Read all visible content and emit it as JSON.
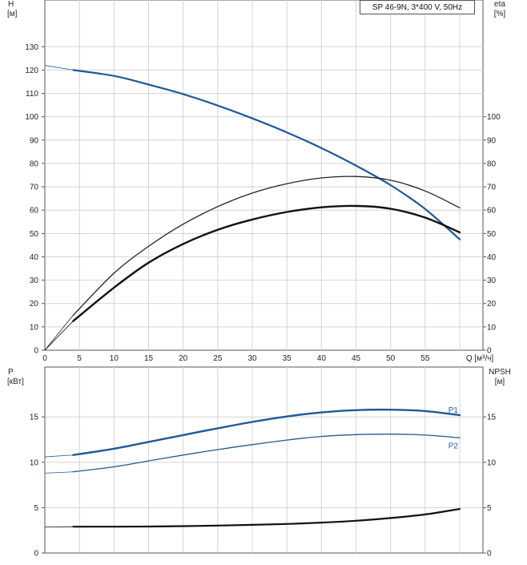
{
  "chart_data": [
    {
      "type": "line",
      "title": "SP 46-9N, 3*400 V, 50Hz",
      "xlabel": "Q [м³/ч]",
      "x_ticks": [
        0,
        5,
        10,
        15,
        20,
        25,
        30,
        35,
        40,
        45,
        50,
        55
      ],
      "xlim": [
        0,
        60
      ],
      "y_left_label": [
        "H",
        "[м]"
      ],
      "y_left_ticks": [
        0,
        10,
        20,
        30,
        40,
        50,
        60,
        70,
        80,
        90,
        100,
        110,
        120,
        130
      ],
      "y_left_lim": [
        0,
        150
      ],
      "y_right_label": [
        "eta",
        "[%]"
      ],
      "y_right_ticks": [
        0,
        10,
        20,
        30,
        40,
        50,
        60,
        70,
        80,
        90,
        100
      ],
      "y_right_lim": [
        0,
        150
      ],
      "grid": true,
      "series": [
        {
          "role": "head",
          "color": "#1f5a96",
          "width": 2.2,
          "axis": "left",
          "thin_prefix": [
            [
              0,
              122
            ],
            [
              4.1,
              120
            ]
          ],
          "x": [
            4.1,
            10,
            15,
            20,
            25,
            30,
            35,
            40,
            45,
            50,
            55,
            60
          ],
          "y": [
            120,
            117.5,
            113.8,
            109.7,
            104.8,
            99.3,
            93.3,
            86.6,
            79.1,
            70.7,
            60.5,
            47.5
          ]
        },
        {
          "role": "efficiency_total",
          "color": "#222222",
          "width": 1.3,
          "axis": "right",
          "thin_prefix": [
            [
              0,
              0
            ],
            [
              4.1,
              15
            ]
          ],
          "x": [
            4.1,
            10,
            15,
            20,
            25,
            30,
            35,
            40,
            45,
            50,
            55,
            60
          ],
          "y": [
            15,
            33,
            44.5,
            54,
            61.5,
            67.3,
            71.3,
            73.8,
            74.4,
            72.8,
            68.2,
            61
          ]
        },
        {
          "role": "efficiency_hydraulic",
          "color": "#111111",
          "width": 2.4,
          "axis": "right",
          "thin_prefix": [
            [
              0,
              0
            ],
            [
              4.1,
              12.5
            ]
          ],
          "x": [
            4.1,
            10,
            15,
            20,
            25,
            30,
            35,
            40,
            45,
            50,
            55,
            60
          ],
          "y": [
            12.5,
            26.8,
            37.5,
            45.5,
            51.6,
            56,
            59.2,
            61.2,
            61.8,
            60.6,
            56.8,
            50.5
          ]
        }
      ]
    },
    {
      "type": "line",
      "xlim": [
        0,
        60
      ],
      "y_left_label": [
        "P",
        "[кВт]"
      ],
      "y_left_ticks": [
        0,
        5,
        10,
        15
      ],
      "y_left_lim": [
        0,
        20.5
      ],
      "y_right_label": [
        "NPSH",
        "[м]"
      ],
      "y_right_ticks": [
        0,
        5,
        10,
        15
      ],
      "y_right_lim": [
        0,
        20.5
      ],
      "grid": true,
      "series": [
        {
          "name": "P1",
          "color": "#1f5a96",
          "width": 2.4,
          "axis": "left",
          "thin_prefix": [
            [
              0,
              10.6
            ],
            [
              4.1,
              10.8
            ]
          ],
          "x": [
            4.1,
            10,
            15,
            20,
            25,
            30,
            35,
            40,
            45,
            50,
            55,
            60
          ],
          "y": [
            10.8,
            11.5,
            12.25,
            13,
            13.75,
            14.45,
            15.05,
            15.5,
            15.75,
            15.8,
            15.65,
            15.2
          ]
        },
        {
          "name": "P2",
          "color": "#1f5a96",
          "width": 1.3,
          "axis": "left",
          "thin_prefix": [
            [
              0,
              8.8
            ],
            [
              4.1,
              8.95
            ]
          ],
          "x": [
            4.1,
            10,
            15,
            20,
            25,
            30,
            35,
            40,
            45,
            50,
            55,
            60
          ],
          "y": [
            8.95,
            9.5,
            10.15,
            10.8,
            11.4,
            11.95,
            12.45,
            12.85,
            13.05,
            13.1,
            13.0,
            12.7
          ]
        },
        {
          "role": "npsh",
          "color": "#111111",
          "width": 2.2,
          "axis": "right",
          "thin_prefix": [
            [
              0,
              2.85
            ],
            [
              4.1,
              2.9
            ]
          ],
          "x": [
            4.1,
            10,
            15,
            20,
            25,
            30,
            35,
            40,
            45,
            50,
            55,
            60
          ],
          "y": [
            2.9,
            2.9,
            2.92,
            2.96,
            3.02,
            3.1,
            3.2,
            3.35,
            3.55,
            3.85,
            4.25,
            4.85
          ]
        }
      ]
    }
  ]
}
